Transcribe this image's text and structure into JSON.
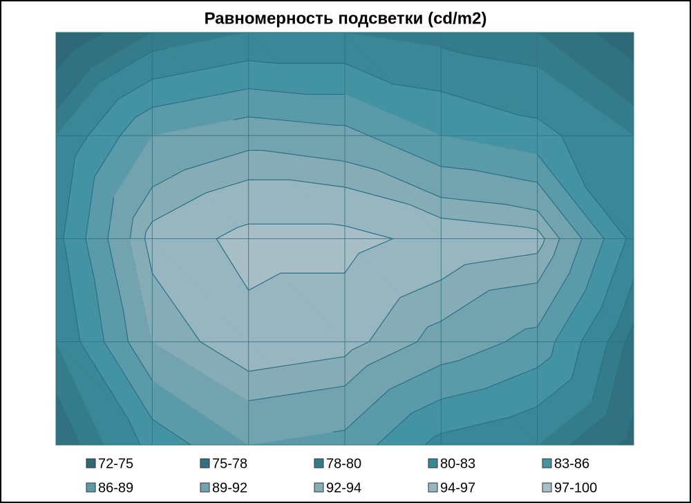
{
  "chart_data": {
    "type": "contour",
    "title": "Равномерность подсветки (cd/m2)",
    "levels": [
      72,
      75,
      78,
      80,
      83,
      86,
      89,
      92,
      94,
      97,
      100
    ],
    "z": [
      [
        72,
        78,
        80,
        80,
        79,
        78,
        73
      ],
      [
        80,
        89,
        91,
        90,
        86,
        84,
        80
      ],
      [
        82,
        95,
        98,
        98,
        96,
        95,
        82
      ],
      [
        80,
        92,
        96,
        95,
        91,
        88,
        77
      ],
      [
        76,
        84,
        89,
        88,
        82,
        80,
        74
      ]
    ],
    "series": [
      {
        "name": "72-75",
        "color": "#2f6877"
      },
      {
        "name": "75-78",
        "color": "#32717f"
      },
      {
        "name": "78-80",
        "color": "#357c8b"
      },
      {
        "name": "80-83",
        "color": "#3a8797"
      },
      {
        "name": "83-86",
        "color": "#4493a3"
      },
      {
        "name": "86-89",
        "color": "#5b9aa8"
      },
      {
        "name": "89-92",
        "color": "#72a3ae"
      },
      {
        "name": "92-94",
        "color": "#86adb6"
      },
      {
        "name": "94-97",
        "color": "#97b6bf"
      },
      {
        "name": "97-100",
        "color": "#a7bec6"
      }
    ],
    "legend": "bottom"
  }
}
